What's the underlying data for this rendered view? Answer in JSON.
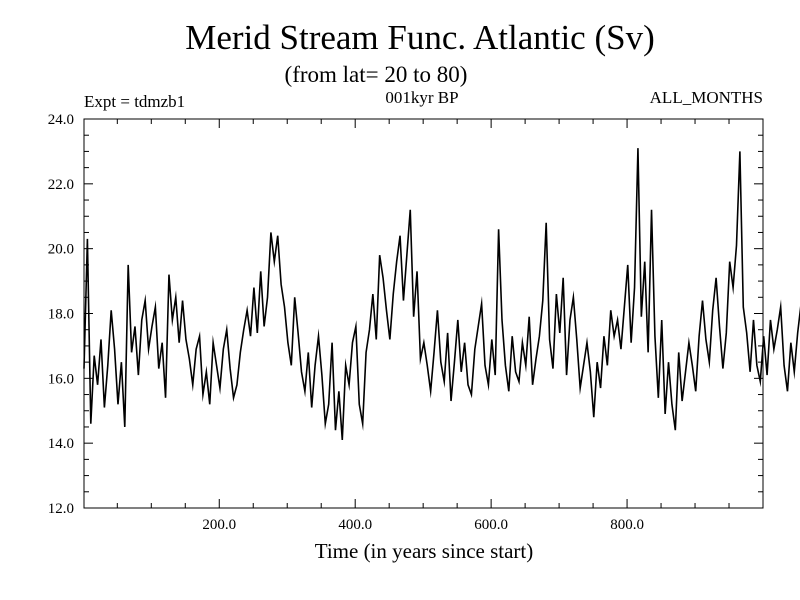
{
  "chart_data": {
    "type": "line",
    "title": "Merid Stream Func. Atlantic (Sv)",
    "subtitle": "(from lat= 20 to 80)",
    "experiment_label": "Expt = tdmzb1",
    "period_label": "001kyr BP",
    "months_label": "ALL_MONTHS",
    "xlabel": "Time (in years since start)",
    "ylabel": "",
    "xlim": [
      1,
      1000
    ],
    "ylim": [
      12.0,
      24.0
    ],
    "x_ticks": [
      200,
      400,
      600,
      800
    ],
    "x_tick_labels": [
      "200.0",
      "400.0",
      "600.0",
      "800.0"
    ],
    "y_ticks": [
      12,
      14,
      16,
      18,
      20,
      22,
      24
    ],
    "y_tick_labels": [
      "12.0",
      "14.0",
      "16.0",
      "18.0",
      "20.0",
      "22.0",
      "24.0"
    ],
    "series": [
      {
        "name": "Merid Stream Func. Atlantic",
        "x_start": 1,
        "x_step": 5,
        "values": [
          16.3,
          20.3,
          14.6,
          16.7,
          15.8,
          17.2,
          15.1,
          16.4,
          18.1,
          16.9,
          15.2,
          16.5,
          14.5,
          19.5,
          16.8,
          17.6,
          16.1,
          17.8,
          18.4,
          16.9,
          17.6,
          18.2,
          16.3,
          17.1,
          15.4,
          19.2,
          17.8,
          18.5,
          17.1,
          18.4,
          17.2,
          16.6,
          15.8,
          16.9,
          17.3,
          15.5,
          16.2,
          15.2,
          17.1,
          16.4,
          15.7,
          16.9,
          17.5,
          16.3,
          15.4,
          15.8,
          16.8,
          17.5,
          18.1,
          17.3,
          18.8,
          17.4,
          19.3,
          17.6,
          18.5,
          20.5,
          19.6,
          20.4,
          18.9,
          18.2,
          17.1,
          16.4,
          18.5,
          17.4,
          16.2,
          15.6,
          16.8,
          15.1,
          16.4,
          17.3,
          16.1,
          14.6,
          15.2,
          17.1,
          14.4,
          15.6,
          14.1,
          16.4,
          15.8,
          17.1,
          17.6,
          15.2,
          14.6,
          16.8,
          17.5,
          18.6,
          17.2,
          19.8,
          19.1,
          18.1,
          17.2,
          18.6,
          19.6,
          20.4,
          18.4,
          19.8,
          21.2,
          17.9,
          19.3,
          16.6,
          17.1,
          16.4,
          15.6,
          16.8,
          18.1,
          16.5,
          15.9,
          17.4,
          15.3,
          16.5,
          17.8,
          16.2,
          17.1,
          15.8,
          15.5,
          16.9,
          17.6,
          18.3,
          16.4,
          15.8,
          17.2,
          16.1,
          20.6,
          17.8,
          16.4,
          15.6,
          17.3,
          16.2,
          15.9,
          17.1,
          16.4,
          17.9,
          15.8,
          16.6,
          17.3,
          18.4,
          20.8,
          17.2,
          16.3,
          18.6,
          17.4,
          19.1,
          16.1,
          17.8,
          18.5,
          17.2,
          15.7,
          16.4,
          17.1,
          16.2,
          14.8,
          16.5,
          15.7,
          17.3,
          16.4,
          18.1,
          17.3,
          17.8,
          16.9,
          18.2,
          19.5,
          17.1,
          18.8,
          23.1,
          17.9,
          19.6,
          16.8,
          21.2,
          17.3,
          15.4,
          17.8,
          14.9,
          16.5,
          15.2,
          14.4,
          16.8,
          15.3,
          16.2,
          17.1,
          16.4,
          15.6,
          17.3,
          18.4,
          17.2,
          16.5,
          18.1,
          19.1,
          17.6,
          16.3,
          17.4,
          19.6,
          18.8,
          20.1,
          23.0,
          18.2,
          17.4,
          16.2,
          17.8,
          16.4,
          15.9,
          17.3,
          16.1,
          17.8,
          16.9,
          17.5,
          18.2,
          16.4,
          15.6,
          17.1,
          16.2,
          17.4,
          18.3,
          16.2,
          17.5,
          19.8,
          16.4,
          15.7,
          16.3,
          17.1,
          15.8,
          16.5,
          14.9,
          13.9,
          15.8,
          16.4,
          17.2,
          16.5,
          15.7,
          17.1,
          16.3,
          15.9,
          17.6,
          16.4,
          15.4,
          17.1,
          16.6,
          17.8,
          16.4,
          15.8,
          17.3,
          16.1,
          16.9,
          15.4,
          16.6,
          17.2,
          16.4,
          17.8,
          18.3,
          17.6,
          16.4,
          17.1,
          18.5,
          17.6,
          16.4,
          18.2,
          17.3,
          17.8,
          16.6,
          18.1,
          17.5,
          16.8,
          18.4,
          17.1,
          19.3,
          18.6,
          20.1,
          18.9,
          18.3,
          21.6,
          18.1,
          18.8,
          19.9,
          17.3,
          18.4,
          17.1,
          19.8,
          18.6,
          18.2,
          17.6,
          16.4,
          15.6,
          17.2,
          16.2,
          15.4,
          16.8,
          17.6,
          16.2,
          18.4,
          17.1,
          19.2,
          15.8,
          16.3,
          21.2,
          18.6,
          20.8,
          17.4,
          18.6
        ]
      }
    ]
  }
}
